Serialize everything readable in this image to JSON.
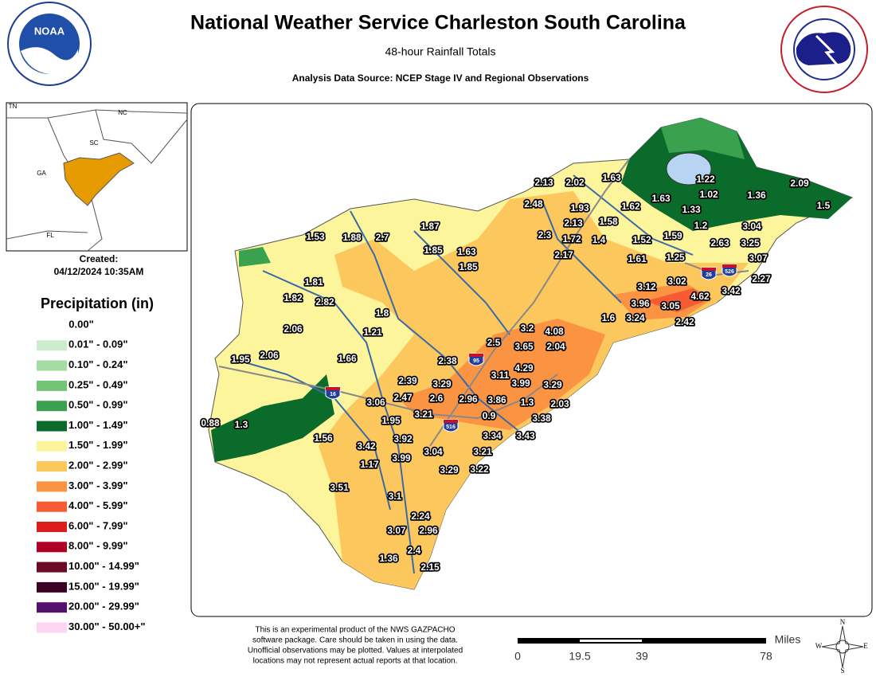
{
  "header": {
    "title": "National Weather Service Charleston South Carolina",
    "subtitle": "48-hour Rainfall Totals",
    "source": "Analysis Data Source: NCEP Stage IV and Regional Observations"
  },
  "logos": {
    "noaa": "NOAA"
  },
  "inset": {
    "labels": [
      "TN",
      "NC",
      "SC",
      "GA",
      "FL"
    ]
  },
  "created": {
    "label": "Created:",
    "date": "04/12/2024 10:35AM"
  },
  "legend": {
    "title": "Precipitation (in)",
    "items": [
      {
        "label": "0.00\"",
        "color": "#ffffff"
      },
      {
        "label": "0.01\" - 0.09\"",
        "color": "#cdeccd"
      },
      {
        "label": "0.10\" - 0.24\"",
        "color": "#a5dba5"
      },
      {
        "label": "0.25\" - 0.49\"",
        "color": "#74c476"
      },
      {
        "label": "0.50\" - 0.99\"",
        "color": "#3aa14f"
      },
      {
        "label": "1.00\" - 1.49\"",
        "color": "#0b6b2a"
      },
      {
        "label": "1.50\" - 1.99\"",
        "color": "#fdf59c"
      },
      {
        "label": "2.00\" - 2.99\"",
        "color": "#fcc75c"
      },
      {
        "label": "3.00\" - 3.99\"",
        "color": "#fb9442"
      },
      {
        "label": "4.00\" - 5.99\"",
        "color": "#f75b34"
      },
      {
        "label": "6.00\" - 7.99\"",
        "color": "#dd1c1c"
      },
      {
        "label": "8.00\" - 9.99\"",
        "color": "#b10026"
      },
      {
        "label": "10.00\" - 14.99\"",
        "color": "#6b0a26"
      },
      {
        "label": "15.00\" - 19.99\"",
        "color": "#3a0326"
      },
      {
        "label": "20.00\" - 29.99\"",
        "color": "#54106e"
      },
      {
        "label": "30.00\" - 50.00+\"",
        "color": "#fdd5f2"
      }
    ]
  },
  "map_labels": [
    "2.13",
    "2.02",
    "1.63",
    "1.22",
    "2.09",
    "1.63",
    "1.02",
    "1.36",
    "1.5",
    "1.62",
    "1.33",
    "2.48",
    "1.93",
    "2.13",
    "1.58",
    "1.2",
    "3.04",
    "1.87",
    "1.53",
    "1.88",
    "2.7",
    "2.3",
    "1.72",
    "1.4",
    "1.52",
    "1.59",
    "2.63",
    "3.25",
    "1.85",
    "1.63",
    "2.17",
    "1.61",
    "1.25",
    "3.07",
    "1.85",
    "2.27",
    "1.81",
    "3.12",
    "3.02",
    "3.42",
    "1.82",
    "2.82",
    "3.96",
    "3.05",
    "4.62",
    "1.8",
    "1.6",
    "3.24",
    "2.42",
    "2.06",
    "1.21",
    "3.2",
    "4.08",
    "2.5",
    "3.65",
    "2.04",
    "1.95",
    "2.06",
    "1.66",
    "2.38",
    "3.11",
    "4.29",
    "2.39",
    "3.29",
    "3.99",
    "3.29",
    "3.06",
    "2.47",
    "2.6",
    "2.96",
    "3.86",
    "1.3",
    "2.03",
    "1.95",
    "3.21",
    "0.9",
    "3.38",
    "0.88",
    "1.3",
    "1.56",
    "3.42",
    "3.92",
    "3.34",
    "3.43",
    "1.17",
    "3.99",
    "3.04",
    "3.21",
    "3.29",
    "3.22",
    "3.51",
    "3.1",
    "2.24",
    "3.07",
    "2.96",
    "2.4",
    "1.36",
    "2.15"
  ],
  "shields": [
    "95",
    "16",
    "26",
    "526",
    "516"
  ],
  "footer": {
    "note": [
      "This is an experimental product of the NWS GAZPACHO",
      "software package. Care should be taken in using the data.",
      "Unofficial observations may be plotted. Values at interpolated",
      "locations may not represent actual reports at that location."
    ],
    "scale_labels": [
      "0",
      "19.5",
      "39",
      "78"
    ],
    "scale_unit": "Miles",
    "compass": [
      "N",
      "S",
      "E",
      "W"
    ]
  }
}
